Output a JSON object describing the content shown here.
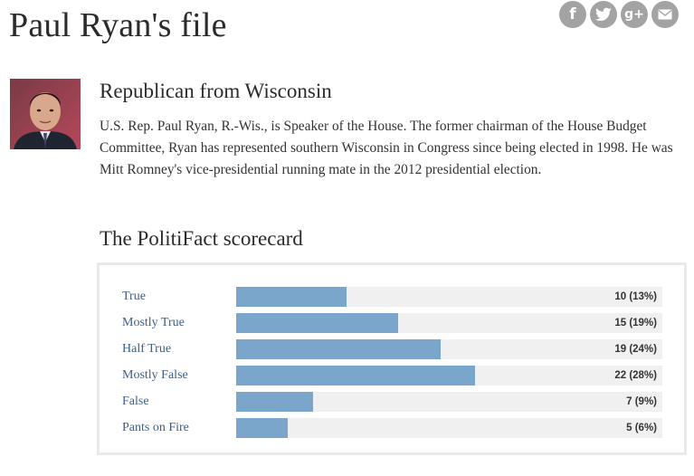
{
  "page": {
    "title": "Paul Ryan's file"
  },
  "share": [
    {
      "icon": "facebook-icon",
      "glyph": "f"
    },
    {
      "icon": "twitter-icon",
      "glyph": "t"
    },
    {
      "icon": "google-plus-icon",
      "glyph": "g+"
    },
    {
      "icon": "email-icon",
      "glyph": "✉"
    }
  ],
  "profile": {
    "subtitle": "Republican from Wisconsin",
    "bio": "U.S. Rep. Paul Ryan, R.-Wis., is Speaker of the House. The former chairman of the House Budget Committee, Ryan has represented southern Wisconsin in Congress since being elected in 1998. He was Mitt Romney's vice-presidential running mate in the 2012 presidential election."
  },
  "scorecard": {
    "heading": "The PolitiFact scorecard",
    "bar_color": "#7ba6cc",
    "rows": [
      {
        "label": "True",
        "count": "10 (13%)",
        "percent": 13
      },
      {
        "label": "Mostly True",
        "count": "15 (19%)",
        "percent": 19
      },
      {
        "label": "Half True",
        "count": "19 (24%)",
        "percent": 24
      },
      {
        "label": "Mostly False",
        "count": "22 (28%)",
        "percent": 28
      },
      {
        "label": "False",
        "count": "7 (9%)",
        "percent": 9
      },
      {
        "label": "Pants on Fire",
        "count": "5 (6%)",
        "percent": 6
      }
    ]
  }
}
